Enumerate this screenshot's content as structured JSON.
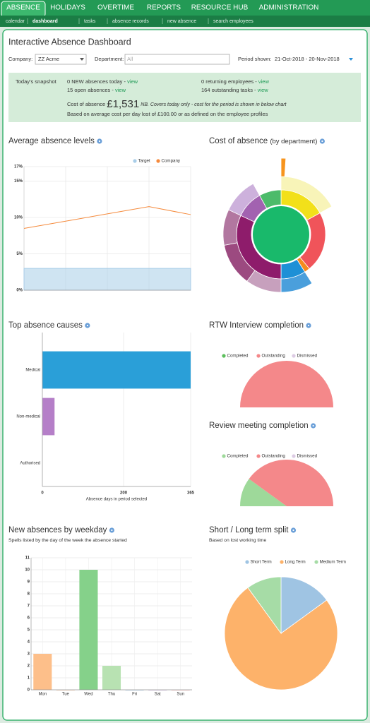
{
  "nav": {
    "tabs": [
      "ABSENCE",
      "HOLIDAYS",
      "OVERTIME",
      "REPORTS",
      "RESOURCE HUB",
      "ADMINISTRATION"
    ],
    "subtabs": [
      "calendar",
      "dashboard",
      "tasks",
      "absence records",
      "new absence",
      "search employees"
    ]
  },
  "header": {
    "title": "Interactive Absence Dashboard"
  },
  "filters": {
    "company_label": "Company:",
    "company": "ZZ Acme",
    "department_label": "Department:",
    "department_placeholder": "All",
    "period_label": "Period shown:",
    "period": "21-Oct-2018 - 20-Nov-2018"
  },
  "snapshot": {
    "label": "Today's snapshot",
    "items": [
      {
        "text": "0 NEW absences today -",
        "link": "view"
      },
      {
        "text": "15 open absences -",
        "link": "view"
      },
      {
        "text": "0 returning employees -",
        "link": "view"
      },
      {
        "text": "164 outstanding tasks -",
        "link": "view"
      }
    ],
    "cost_label": "Cost of absence",
    "cost": "£1,531",
    "cost_note": "NB. Covers today only - cost for the period is shown in below chart",
    "basis": "Based on average cost per day lost of £100.00 or as defined on the employee profiles"
  },
  "chart_data": [
    {
      "type": "line",
      "title": "Average absence levels",
      "categories": [
        null,
        null,
        null,
        null,
        null
      ],
      "series": [
        {
          "name": "Target",
          "color": "#a8cde8",
          "area": true,
          "values": [
            3,
            3,
            3,
            3,
            3
          ]
        },
        {
          "name": "Company",
          "color": "#f58a3c",
          "values": [
            8.5,
            9.5,
            10.5,
            11.5,
            10.4
          ]
        }
      ],
      "ylim": [
        0,
        17
      ],
      "yticks": [
        {
          "value": 0,
          "label": "0%"
        },
        {
          "value": 5,
          "label": "5%"
        },
        {
          "value": 10,
          "label": "10%"
        },
        {
          "value": 15,
          "label": "15%"
        },
        {
          "value": 17,
          "label": "17%"
        }
      ],
      "grid": true
    },
    {
      "type": "sunburst",
      "title": "Cost of absence",
      "title_suffix": "(by department)",
      "root": {
        "value": 100,
        "color": "#19b96b"
      },
      "segments": [
        {
          "value": 17,
          "color": "#f2e01a",
          "children": [
            {
              "value": 17,
              "color": "#f8f4b8",
              "children": [
                {
                  "value": 1,
                  "color": "#f7941d"
                }
              ]
            }
          ]
        },
        {
          "value": 22,
          "color": "#f0545a"
        },
        {
          "value": 2,
          "color": "#f58a1f"
        },
        {
          "value": 9,
          "color": "#1e90d6",
          "children": [
            {
              "value": 9,
              "color": "#4a9fdc"
            }
          ]
        },
        {
          "value": 32,
          "color": "#8e1c6b",
          "children": [
            {
              "value": 10,
              "color": "#c7a0bd"
            },
            {
              "value": 12,
              "color": "#9c4a80"
            },
            {
              "value": 10,
              "color": "#b277a0"
            }
          ]
        },
        {
          "value": 10,
          "color": "#a262b0",
          "children": [
            {
              "value": 10,
              "color": "#cdb1dc"
            }
          ]
        },
        {
          "value": 8,
          "color": "#4cbb6a"
        }
      ]
    },
    {
      "type": "hbar",
      "title": "Top absence causes",
      "categories": [
        "Medical",
        "Non-medical",
        "Authorised"
      ],
      "values": [
        365,
        30,
        0
      ],
      "colors": [
        "#2a9fd8",
        "#b57fc8",
        "#cccccc"
      ],
      "xlim": [
        0,
        365
      ],
      "xticks": [
        0,
        200,
        365
      ],
      "xlabel": "Absence days in period selected",
      "grid": true
    },
    {
      "type": "halfpie",
      "title": "RTW Interview completion",
      "categories": [
        "Completed",
        "Outstanding",
        "Dismissed"
      ],
      "values": [
        0,
        100,
        0
      ],
      "colors": [
        "#5cbf5c",
        "#f4888a",
        "#dccbe3"
      ]
    },
    {
      "type": "halfpie",
      "title": "Review meeting completion",
      "categories": [
        "Completed",
        "Outstanding",
        "Dismissed"
      ],
      "values": [
        20,
        80,
        0
      ],
      "colors": [
        "#9ed99a",
        "#f4888a",
        "#dccbe3"
      ]
    },
    {
      "type": "bar",
      "title": "New absences by weekday",
      "subtitle": "Spells listed by the day of the week the absence started",
      "categories": [
        "Mon",
        "Tue",
        "Wed",
        "Thu",
        "Fri",
        "Sat",
        "Sun"
      ],
      "values": [
        3,
        0,
        10,
        2,
        0,
        0,
        0
      ],
      "colors": [
        "#fdbf8a",
        "#f5c3a0",
        "#85d18a",
        "#b8e2b2",
        "#9fc4e3",
        "#c9b3e0",
        "#f6b5b5"
      ],
      "ylim": [
        0,
        11
      ],
      "yticks": [
        0,
        1,
        2,
        3,
        4,
        5,
        6,
        7,
        8,
        9,
        10,
        11
      ],
      "grid": true
    },
    {
      "type": "pie",
      "title": "Short / Long term split",
      "subtitle": "Based on lost working time",
      "categories": [
        "Short Term",
        "Long Term",
        "Medium Term"
      ],
      "values": [
        15,
        75,
        10
      ],
      "colors": [
        "#9fc4e3",
        "#fdb26a",
        "#a6dca6"
      ]
    }
  ]
}
